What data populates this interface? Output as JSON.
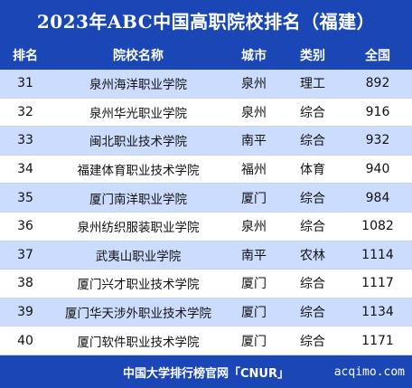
{
  "title": "2023年ABC中国高职院校排名（福建）",
  "columns": {
    "rank": "排名",
    "name": "院校名称",
    "city": "城市",
    "type": "类别",
    "score": "全国"
  },
  "rows": [
    {
      "rank": "31",
      "name": "泉州海洋职业学院",
      "city": "泉州",
      "type": "理工",
      "score": "892"
    },
    {
      "rank": "32",
      "name": "泉州华光职业学院",
      "city": "泉州",
      "type": "综合",
      "score": "916"
    },
    {
      "rank": "33",
      "name": "闽北职业技术学院",
      "city": "南平",
      "type": "综合",
      "score": "932"
    },
    {
      "rank": "34",
      "name": "福建体育职业技术学院",
      "city": "福州",
      "type": "体育",
      "score": "940"
    },
    {
      "rank": "35",
      "name": "厦门南洋职业学院",
      "city": "厦门",
      "type": "综合",
      "score": "984"
    },
    {
      "rank": "36",
      "name": "泉州纺织服装职业学院",
      "city": "泉州",
      "type": "综合",
      "score": "1082"
    },
    {
      "rank": "37",
      "name": "武夷山职业学院",
      "city": "南平",
      "type": "农林",
      "score": "1114"
    },
    {
      "rank": "38",
      "name": "厦门兴才职业技术学院",
      "city": "厦门",
      "type": "综合",
      "score": "1117"
    },
    {
      "rank": "39",
      "name": "厦门华天涉外职业技术学院",
      "city": "厦门",
      "type": "综合",
      "score": "1134"
    },
    {
      "rank": "40",
      "name": "厦门软件职业技术学院",
      "city": "厦门",
      "type": "综合",
      "score": "1171"
    }
  ],
  "footer": {
    "source": "中国大学排行榜官网「CNUR」",
    "watermark": "acqimo.com"
  }
}
